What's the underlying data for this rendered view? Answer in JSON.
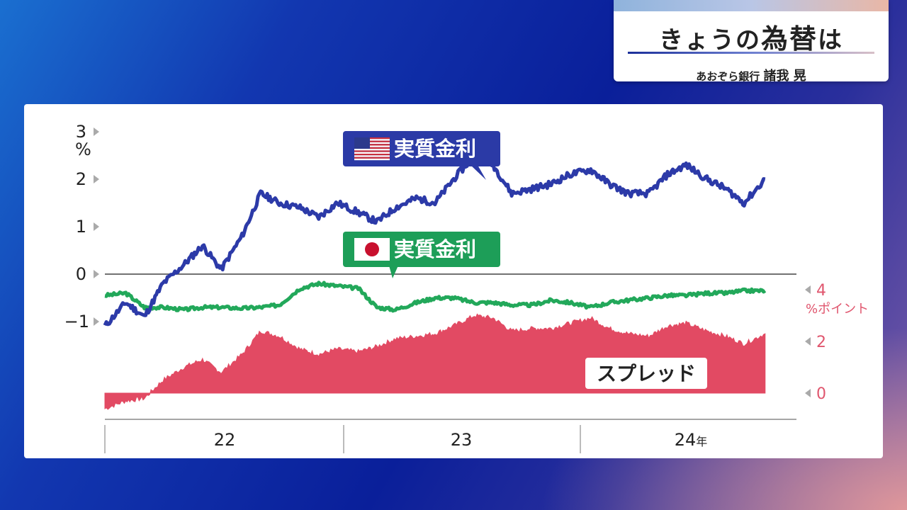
{
  "header": {
    "title_plain": "きょうの",
    "title_bold": "為替",
    "title_suffix": "は",
    "subtitle_org": "あおぞら銀行",
    "subtitle_name": "諸我 晃"
  },
  "chart_data": {
    "type": "line",
    "left_axis": {
      "unit": "%",
      "ticks": [
        3,
        2,
        1,
        0,
        -1
      ],
      "ylim": [
        -1.2,
        3
      ]
    },
    "right_axis": {
      "unit": "%ポイント",
      "ticks": [
        4,
        2,
        0
      ],
      "ylim": [
        0,
        4
      ]
    },
    "x_ticks": [
      "22",
      "23",
      "24年"
    ],
    "series": [
      {
        "name": "実質金利",
        "flag": "us-flag",
        "color": "#2c3aa8",
        "x": [
          2021.83,
          2021.92,
          2022.0,
          2022.08,
          2022.17,
          2022.25,
          2022.33,
          2022.42,
          2022.5,
          2022.58,
          2022.67,
          2022.75,
          2022.83,
          2022.92,
          2023.0,
          2023.08,
          2023.17,
          2023.25,
          2023.33,
          2023.42,
          2023.5,
          2023.58,
          2023.67,
          2023.75,
          2023.83,
          2023.92,
          2024.0,
          2024.08,
          2024.17,
          2024.25,
          2024.33,
          2024.42,
          2024.5,
          2024.58,
          2024.67
        ],
        "values": [
          -1.1,
          -0.6,
          -0.9,
          -0.2,
          0.2,
          0.6,
          0.1,
          0.8,
          1.7,
          1.5,
          1.4,
          1.2,
          1.5,
          1.3,
          1.1,
          1.4,
          1.6,
          1.5,
          2.0,
          2.5,
          2.3,
          1.7,
          1.8,
          1.9,
          2.1,
          2.2,
          1.9,
          1.7,
          1.7,
          2.1,
          2.3,
          2.0,
          1.8,
          1.5,
          2.0
        ]
      },
      {
        "name": "実質金利",
        "flag": "japan-flag",
        "color": "#22a85a",
        "x": [
          2021.83,
          2021.92,
          2022.0,
          2022.08,
          2022.17,
          2022.25,
          2022.33,
          2022.42,
          2022.5,
          2022.58,
          2022.67,
          2022.75,
          2022.83,
          2022.92,
          2023.0,
          2023.08,
          2023.17,
          2023.25,
          2023.33,
          2023.42,
          2023.5,
          2023.58,
          2023.67,
          2023.75,
          2023.83,
          2023.92,
          2024.0,
          2024.08,
          2024.17,
          2024.25,
          2024.33,
          2024.42,
          2024.5,
          2024.58,
          2024.67
        ],
        "values": [
          -0.45,
          -0.4,
          -0.7,
          -0.7,
          -0.75,
          -0.7,
          -0.7,
          -0.72,
          -0.7,
          -0.65,
          -0.3,
          -0.2,
          -0.25,
          -0.3,
          -0.7,
          -0.75,
          -0.6,
          -0.5,
          -0.5,
          -0.6,
          -0.6,
          -0.65,
          -0.65,
          -0.55,
          -0.6,
          -0.7,
          -0.6,
          -0.55,
          -0.5,
          -0.45,
          -0.45,
          -0.4,
          -0.4,
          -0.35,
          -0.35
        ]
      },
      {
        "name": "スプレッド",
        "color": "#e24a63",
        "axis": "right",
        "x": [
          2021.83,
          2021.92,
          2022.0,
          2022.08,
          2022.17,
          2022.25,
          2022.33,
          2022.42,
          2022.5,
          2022.58,
          2022.67,
          2022.75,
          2022.83,
          2022.92,
          2023.0,
          2023.08,
          2023.17,
          2023.25,
          2023.33,
          2023.42,
          2023.5,
          2023.58,
          2023.67,
          2023.75,
          2023.83,
          2023.92,
          2024.0,
          2024.08,
          2024.17,
          2024.25,
          2024.33,
          2024.42,
          2024.5,
          2024.58,
          2024.67
        ],
        "values": [
          -0.6,
          -0.3,
          -0.2,
          0.5,
          1.0,
          1.3,
          0.8,
          1.5,
          2.4,
          2.2,
          1.7,
          1.5,
          1.7,
          1.6,
          1.8,
          2.1,
          2.2,
          2.3,
          2.6,
          3.0,
          2.9,
          2.4,
          2.5,
          2.5,
          2.7,
          2.9,
          2.5,
          2.3,
          2.2,
          2.6,
          2.7,
          2.4,
          2.2,
          1.9,
          2.3
        ]
      }
    ],
    "labels": {
      "us": "実質金利",
      "jp": "実質金利",
      "spread": "スプレッド"
    },
    "colors": {
      "us": "#2c3aa8",
      "jp": "#22a85a",
      "spread": "#e24a63",
      "us_label_bg": "#2b3aa6",
      "jp_label_bg": "#1d9e58"
    },
    "grid": false,
    "xlim": [
      2021.83,
      2024.75
    ]
  }
}
